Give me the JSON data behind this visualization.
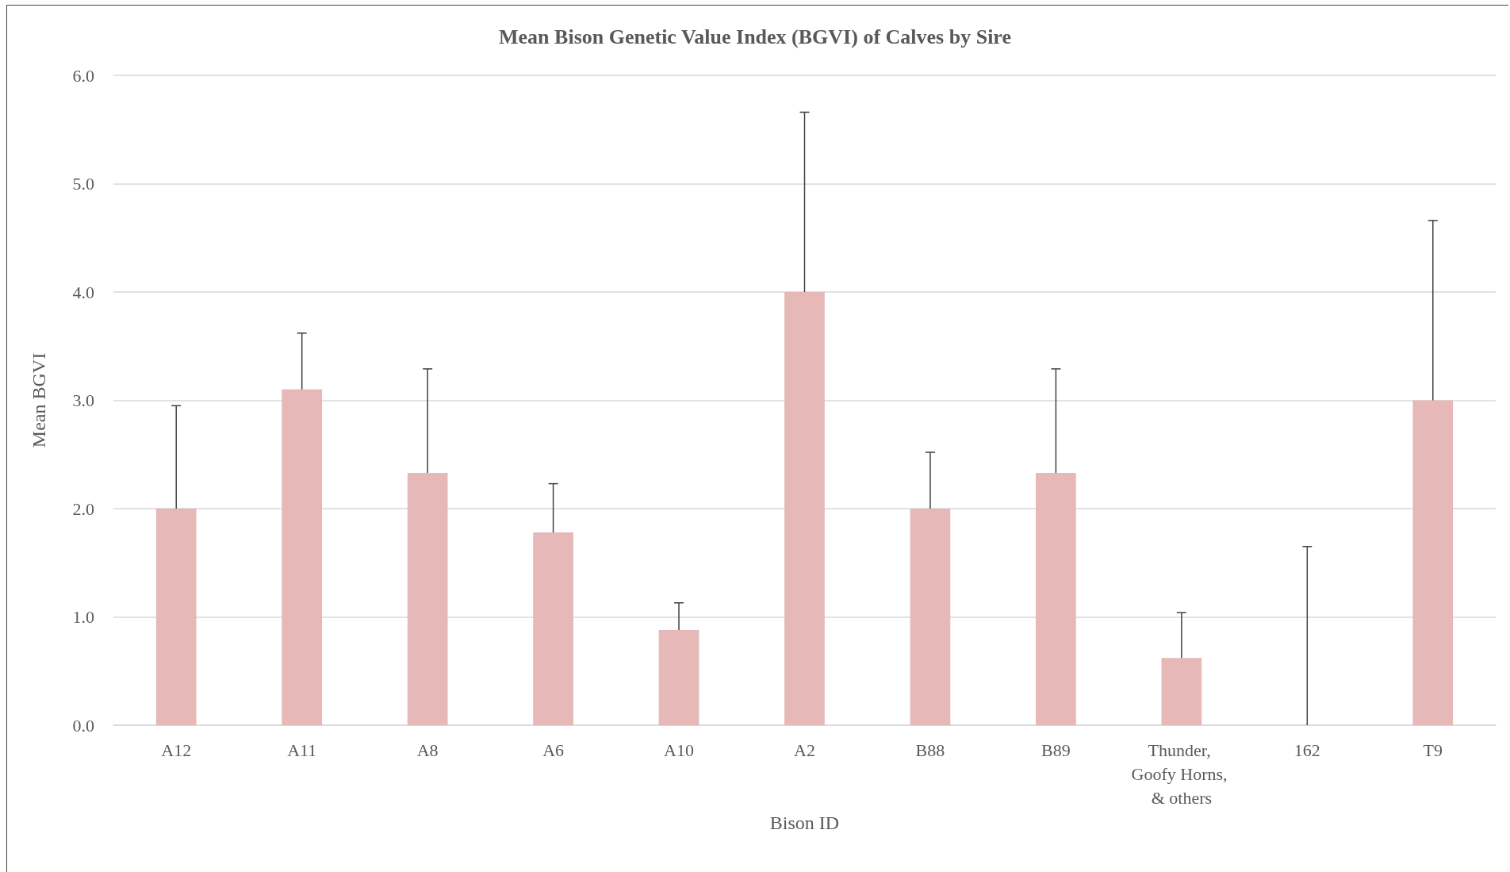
{
  "chart_data": {
    "type": "bar",
    "title": "Mean Bison Genetic Value Index (BGVI) of Calves by Sire",
    "xlabel": "Bison ID",
    "ylabel": "Mean BGVI",
    "categories": [
      "A12",
      "A11",
      "A8",
      "A6",
      "A10",
      "A2",
      "B88",
      "B89",
      "Thunder, Goofy Horns, & others",
      "162",
      "T9"
    ],
    "values": [
      2.0,
      3.1,
      2.33,
      1.78,
      0.88,
      4.0,
      2.0,
      2.33,
      0.62,
      0,
      3.0
    ],
    "errors": [
      [
        2.0,
        2.95
      ],
      [
        3.1,
        3.62
      ],
      [
        2.33,
        3.29
      ],
      [
        1.78,
        2.23
      ],
      [
        0.88,
        1.13
      ],
      [
        4.0,
        5.66
      ],
      [
        2.0,
        2.52
      ],
      [
        2.33,
        3.29
      ],
      [
        0.62,
        1.04
      ],
      [
        0,
        1.65
      ],
      [
        3.0,
        4.66
      ]
    ],
    "color": "#e6b8b7",
    "ylim": [
      0,
      6
    ],
    "yticks": [
      {
        "value": 0,
        "label": "0.0"
      },
      {
        "value": 1,
        "label": "1.0"
      },
      {
        "value": 2,
        "label": "2.0"
      },
      {
        "value": 3,
        "label": "3.0"
      },
      {
        "value": 4,
        "label": "4.0"
      },
      {
        "value": 5,
        "label": "5.0"
      },
      {
        "value": 6,
        "label": "6.0"
      }
    ],
    "grid": "y"
  }
}
